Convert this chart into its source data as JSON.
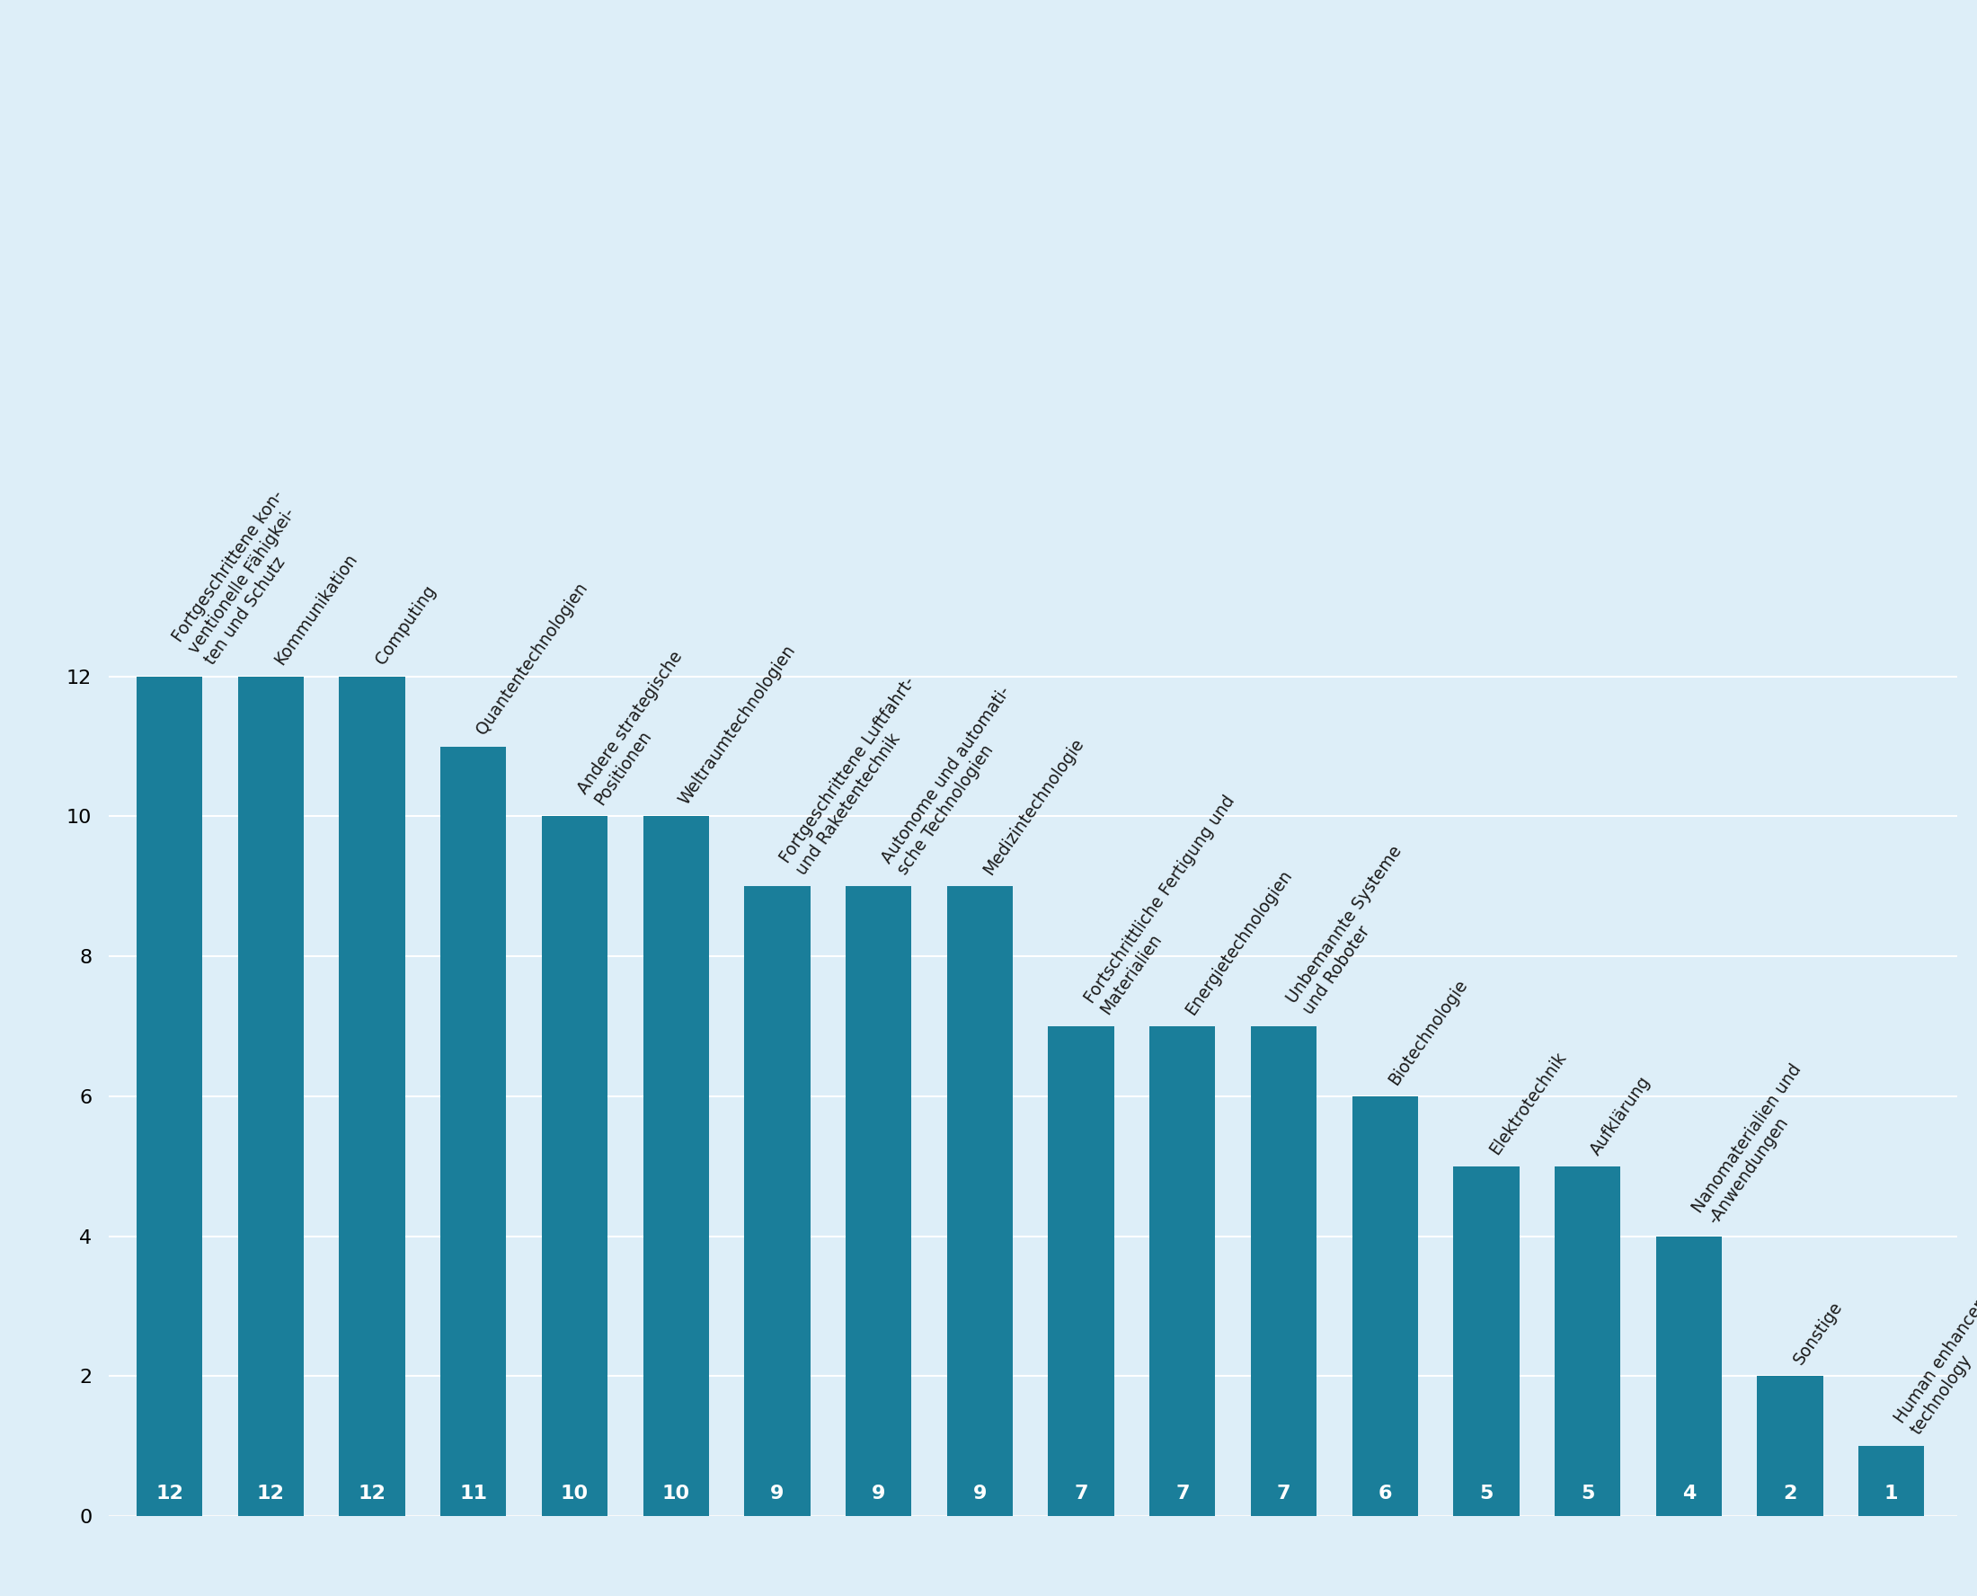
{
  "categories": [
    "Fortgeschrittene kon-\nventionelle Fähigkei-\nten und Schutz",
    "Kommunikation",
    "Computing",
    "Quantentechnologien",
    "Andere strategische\nPositionen",
    "Weltraumtechnologien",
    "Fortgeschrittene Luftfahrt-\nund Raketentechnik",
    "Autonome und automati-\nsche Technologien",
    "Medizintechnologie",
    "Fortschrittliche Fertigung und\nMaterialien",
    "Energietechnologien",
    "Unbemannte Systeme\nund Roboter",
    "Biotechnologie",
    "Elektrotechnik",
    "Aufklärung",
    "Nanomaterialien und\n-Anwendungen",
    "Sonstige",
    "Human enhancement\ntechnology"
  ],
  "values": [
    12,
    12,
    12,
    11,
    10,
    10,
    9,
    9,
    9,
    7,
    7,
    7,
    6,
    5,
    5,
    4,
    2,
    1
  ],
  "bar_color": "#1a7e9a",
  "background_color": "#ddeef8",
  "text_color_inside": "#ffffff",
  "text_color_label": "#1a1a1a",
  "ylim": [
    0,
    13
  ],
  "yticks": [
    0,
    2,
    4,
    6,
    8,
    10,
    12
  ],
  "label_fontsize": 13.5,
  "value_fontsize": 16,
  "tick_fontsize": 16
}
